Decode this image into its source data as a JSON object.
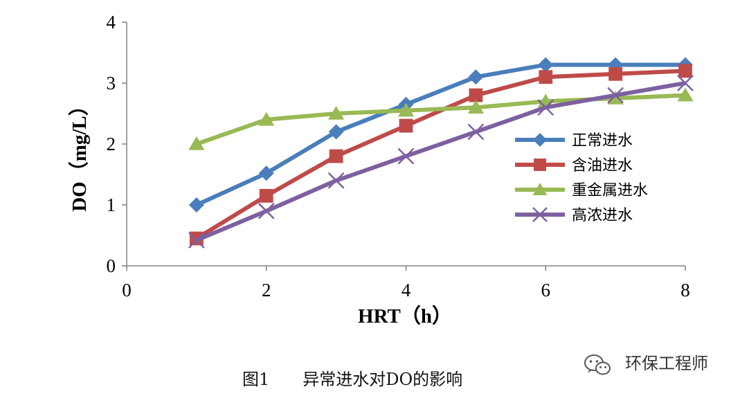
{
  "chart_data": {
    "type": "line",
    "title": "",
    "xlabel": "HRT（h）",
    "ylabel": "DO（mg/L）",
    "xlim": [
      0,
      8
    ],
    "ylim": [
      0,
      4
    ],
    "x_ticks": [
      "0",
      "2",
      "4",
      "6",
      "8"
    ],
    "y_ticks": [
      "0",
      "1",
      "2",
      "3",
      "4"
    ],
    "grid": false,
    "legend_position": "right",
    "x": [
      1,
      2,
      3,
      4,
      5,
      6,
      7,
      8
    ],
    "series": [
      {
        "name": "正常进水",
        "values": [
          1.0,
          1.52,
          2.2,
          2.65,
          3.1,
          3.3,
          3.3,
          3.3
        ],
        "color": "#4A7EBB",
        "marker": "diamond"
      },
      {
        "name": "含油进水",
        "values": [
          0.45,
          1.15,
          1.8,
          2.3,
          2.8,
          3.1,
          3.15,
          3.2
        ],
        "color": "#BE4B48",
        "marker": "square"
      },
      {
        "name": "重金属进水",
        "values": [
          2.0,
          2.4,
          2.5,
          2.55,
          2.6,
          2.7,
          2.75,
          2.8
        ],
        "color": "#98B954",
        "marker": "triangle"
      },
      {
        "name": "高浓进水",
        "values": [
          0.42,
          0.9,
          1.4,
          1.8,
          2.2,
          2.6,
          2.8,
          3.0
        ],
        "color": "#7D60A0",
        "marker": "x"
      }
    ]
  },
  "caption": "图1　　异常进水对DO的影响",
  "watermark": {
    "text": "环保工程师",
    "icon": "wechat-icon"
  }
}
